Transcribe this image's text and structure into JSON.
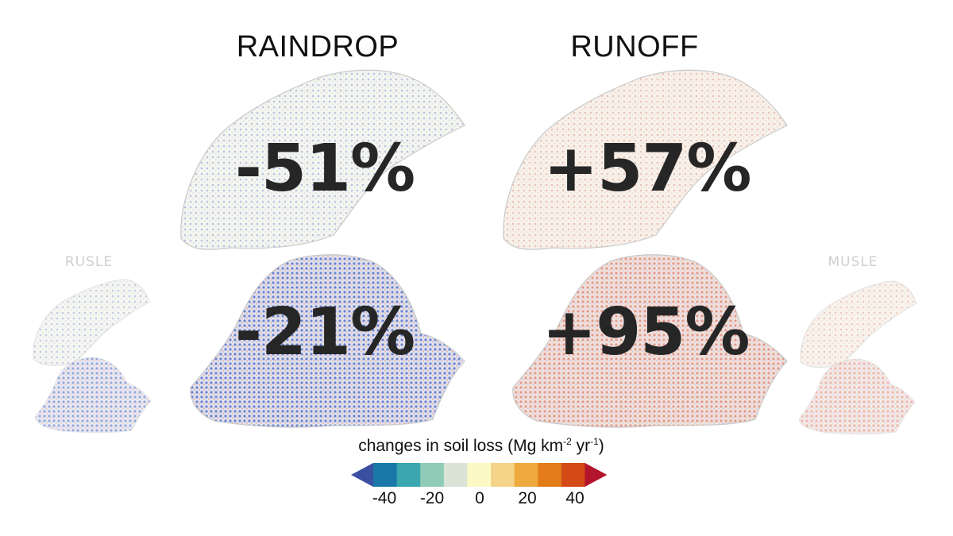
{
  "columns": {
    "raindrop": {
      "title": "RAINDROP"
    },
    "runoff": {
      "title": "RUNOFF"
    }
  },
  "side_labels": {
    "left": "RUSLE",
    "right": "MUSLE"
  },
  "panels": {
    "raindrop_top": {
      "value": "-51%",
      "tint": "#9fb0d8"
    },
    "raindrop_bottom": {
      "value": "-21%",
      "tint": "#5b70c2"
    },
    "runoff_top": {
      "value": "+57%",
      "tint": "#e9b6a8"
    },
    "runoff_bottom": {
      "value": "+95%",
      "tint": "#e3a096"
    }
  },
  "legend": {
    "title_prefix": "changes in soil loss (Mg km",
    "title_sup1": "-2",
    "title_mid": " yr",
    "title_sup2": "-1",
    "title_suffix": ")",
    "colors": [
      "#3a4fa0",
      "#1a78a8",
      "#39a7ad",
      "#8fcbb6",
      "#d9e4d6",
      "#fdf9c4",
      "#f4d488",
      "#eeaa3f",
      "#e27d1a",
      "#d34a17",
      "#b3152c"
    ],
    "ticks": [
      "-40",
      "-20",
      "0",
      "20",
      "40"
    ]
  }
}
